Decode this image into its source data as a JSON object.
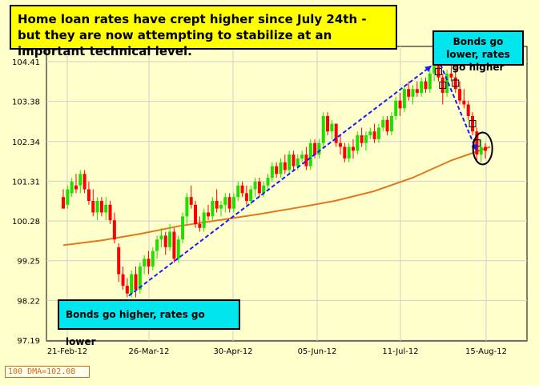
{
  "headline": "Home loan rates have crept higher since July 24th - but they are now attempting to stabilize at an important technical level.",
  "annotations": {
    "right": "Bonds go lower, rates go higher",
    "left": "Bonds go higher, rates go lower"
  },
  "legend": {
    "dma_label": "100 DMA=102.08"
  },
  "colors": {
    "background": "#ffffcc",
    "up_candle": "#22dd00",
    "down_candle": "#ff0000",
    "dma_line": "#e0781e",
    "arrow": "#1a1aff",
    "headline_box": "#ffff00",
    "callout_box": "#00e5ee"
  },
  "chart_data": {
    "type": "candlestick",
    "title": "",
    "xlabel": "",
    "ylabel": "",
    "ylim": [
      97.19,
      104.8
    ],
    "yticks": [
      97.19,
      98.22,
      99.25,
      100.28,
      101.31,
      102.34,
      103.38,
      104.41
    ],
    "ytick_labels": [
      "97.19",
      "98.22",
      "99.25",
      "100.28",
      "101.31",
      "102.34",
      "103.38",
      "104.41"
    ],
    "xtick_labels": [
      "21-Feb-12",
      "26-Mar-12",
      "30-Apr-12",
      "05-Jun-12",
      "11-Jul-12",
      "15-Aug-12"
    ],
    "grid": true,
    "candles": [
      {
        "open": 100.9,
        "high": 101.1,
        "low": 100.6,
        "close": 100.6
      },
      {
        "open": 100.7,
        "high": 101.2,
        "low": 100.6,
        "close": 101.1
      },
      {
        "open": 101.0,
        "high": 101.4,
        "low": 100.9,
        "close": 101.3
      },
      {
        "open": 101.2,
        "high": 101.5,
        "low": 101.0,
        "close": 101.1
      },
      {
        "open": 101.2,
        "high": 101.6,
        "low": 101.0,
        "close": 101.5
      },
      {
        "open": 101.5,
        "high": 101.6,
        "low": 101.0,
        "close": 101.1
      },
      {
        "open": 101.1,
        "high": 101.3,
        "low": 100.7,
        "close": 100.8
      },
      {
        "open": 100.8,
        "high": 101.1,
        "low": 100.4,
        "close": 100.5
      },
      {
        "open": 100.5,
        "high": 100.9,
        "low": 100.3,
        "close": 100.8
      },
      {
        "open": 100.8,
        "high": 100.9,
        "low": 100.4,
        "close": 100.5
      },
      {
        "open": 100.5,
        "high": 100.9,
        "low": 100.3,
        "close": 100.7
      },
      {
        "open": 100.7,
        "high": 100.8,
        "low": 100.2,
        "close": 100.3
      },
      {
        "open": 100.3,
        "high": 100.5,
        "low": 99.7,
        "close": 99.8
      },
      {
        "open": 99.6,
        "high": 99.7,
        "low": 98.7,
        "close": 98.9
      },
      {
        "open": 98.9,
        "high": 99.1,
        "low": 98.5,
        "close": 98.6
      },
      {
        "open": 98.6,
        "high": 98.8,
        "low": 98.3,
        "close": 98.4
      },
      {
        "open": 98.4,
        "high": 99.0,
        "low": 98.3,
        "close": 98.9
      },
      {
        "open": 98.9,
        "high": 99.1,
        "low": 98.3,
        "close": 98.5
      },
      {
        "open": 98.5,
        "high": 99.2,
        "low": 98.4,
        "close": 99.1
      },
      {
        "open": 99.1,
        "high": 99.4,
        "low": 98.9,
        "close": 99.3
      },
      {
        "open": 99.3,
        "high": 99.5,
        "low": 98.9,
        "close": 99.1
      },
      {
        "open": 99.1,
        "high": 99.6,
        "low": 99.0,
        "close": 99.5
      },
      {
        "open": 99.5,
        "high": 99.9,
        "low": 99.3,
        "close": 99.8
      },
      {
        "open": 99.8,
        "high": 100.1,
        "low": 99.6,
        "close": 99.9
      },
      {
        "open": 99.9,
        "high": 100.0,
        "low": 99.4,
        "close": 99.6
      },
      {
        "open": 99.6,
        "high": 100.2,
        "low": 99.5,
        "close": 100.0
      },
      {
        "open": 100.0,
        "high": 100.1,
        "low": 99.2,
        "close": 99.3
      },
      {
        "open": 99.3,
        "high": 99.9,
        "low": 99.2,
        "close": 99.8
      },
      {
        "open": 99.8,
        "high": 100.5,
        "low": 99.7,
        "close": 100.4
      },
      {
        "open": 100.4,
        "high": 101.0,
        "low": 100.2,
        "close": 100.9
      },
      {
        "open": 100.9,
        "high": 101.2,
        "low": 100.6,
        "close": 100.7
      },
      {
        "open": 100.7,
        "high": 100.8,
        "low": 100.1,
        "close": 100.2
      },
      {
        "open": 100.2,
        "high": 100.4,
        "low": 100.0,
        "close": 100.1
      },
      {
        "open": 100.1,
        "high": 100.6,
        "low": 100.0,
        "close": 100.5
      },
      {
        "open": 100.5,
        "high": 100.7,
        "low": 100.3,
        "close": 100.4
      },
      {
        "open": 100.4,
        "high": 100.9,
        "low": 100.3,
        "close": 100.8
      },
      {
        "open": 100.8,
        "high": 101.1,
        "low": 100.5,
        "close": 100.6
      },
      {
        "open": 100.6,
        "high": 100.8,
        "low": 100.4,
        "close": 100.7
      },
      {
        "open": 100.7,
        "high": 101.0,
        "low": 100.5,
        "close": 100.9
      },
      {
        "open": 100.9,
        "high": 101.0,
        "low": 100.5,
        "close": 100.6
      },
      {
        "open": 100.6,
        "high": 101.0,
        "low": 100.5,
        "close": 100.9
      },
      {
        "open": 100.9,
        "high": 101.3,
        "low": 100.8,
        "close": 101.2
      },
      {
        "open": 101.2,
        "high": 101.3,
        "low": 100.9,
        "close": 101.0
      },
      {
        "open": 101.0,
        "high": 101.2,
        "low": 100.7,
        "close": 100.8
      },
      {
        "open": 100.8,
        "high": 101.2,
        "low": 100.7,
        "close": 101.1
      },
      {
        "open": 101.1,
        "high": 101.4,
        "low": 100.9,
        "close": 101.3
      },
      {
        "open": 101.3,
        "high": 101.4,
        "low": 100.9,
        "close": 101.0
      },
      {
        "open": 101.0,
        "high": 101.3,
        "low": 100.9,
        "close": 101.2
      },
      {
        "open": 101.2,
        "high": 101.5,
        "low": 101.1,
        "close": 101.4
      },
      {
        "open": 101.4,
        "high": 101.8,
        "low": 101.3,
        "close": 101.7
      },
      {
        "open": 101.7,
        "high": 101.8,
        "low": 101.4,
        "close": 101.5
      },
      {
        "open": 101.5,
        "high": 101.9,
        "low": 101.4,
        "close": 101.8
      },
      {
        "open": 101.8,
        "high": 102.0,
        "low": 101.5,
        "close": 101.6
      },
      {
        "open": 101.6,
        "high": 102.1,
        "low": 101.5,
        "close": 102.0
      },
      {
        "open": 102.0,
        "high": 102.1,
        "low": 101.6,
        "close": 101.7
      },
      {
        "open": 101.7,
        "high": 102.0,
        "low": 101.6,
        "close": 101.9
      },
      {
        "open": 101.9,
        "high": 102.1,
        "low": 101.8,
        "close": 102.0
      },
      {
        "open": 102.0,
        "high": 102.2,
        "low": 101.6,
        "close": 101.7
      },
      {
        "open": 101.7,
        "high": 102.4,
        "low": 101.6,
        "close": 102.3
      },
      {
        "open": 102.3,
        "high": 102.4,
        "low": 101.9,
        "close": 102.0
      },
      {
        "open": 102.0,
        "high": 102.4,
        "low": 101.9,
        "close": 102.3
      },
      {
        "open": 102.3,
        "high": 103.1,
        "low": 102.2,
        "close": 103.0
      },
      {
        "open": 103.0,
        "high": 103.1,
        "low": 102.5,
        "close": 102.6
      },
      {
        "open": 102.6,
        "high": 102.9,
        "low": 102.4,
        "close": 102.8
      },
      {
        "open": 102.8,
        "high": 102.8,
        "low": 102.2,
        "close": 102.3
      },
      {
        "open": 102.3,
        "high": 102.5,
        "low": 102.0,
        "close": 102.2
      },
      {
        "open": 102.2,
        "high": 102.3,
        "low": 101.8,
        "close": 101.9
      },
      {
        "open": 101.9,
        "high": 102.3,
        "low": 101.8,
        "close": 102.2
      },
      {
        "open": 102.2,
        "high": 102.4,
        "low": 101.9,
        "close": 102.1
      },
      {
        "open": 102.1,
        "high": 102.6,
        "low": 102.0,
        "close": 102.5
      },
      {
        "open": 102.5,
        "high": 102.7,
        "low": 102.2,
        "close": 102.3
      },
      {
        "open": 102.3,
        "high": 102.6,
        "low": 102.1,
        "close": 102.5
      },
      {
        "open": 102.5,
        "high": 102.7,
        "low": 102.4,
        "close": 102.6
      },
      {
        "open": 102.6,
        "high": 102.8,
        "low": 102.3,
        "close": 102.4
      },
      {
        "open": 102.4,
        "high": 102.8,
        "low": 102.3,
        "close": 102.7
      },
      {
        "open": 102.7,
        "high": 103.0,
        "low": 102.6,
        "close": 102.9
      },
      {
        "open": 102.9,
        "high": 103.0,
        "low": 102.5,
        "close": 102.6
      },
      {
        "open": 102.6,
        "high": 103.1,
        "low": 102.5,
        "close": 103.0
      },
      {
        "open": 103.0,
        "high": 103.5,
        "low": 102.9,
        "close": 103.4
      },
      {
        "open": 103.4,
        "high": 103.6,
        "low": 103.0,
        "close": 103.2
      },
      {
        "open": 103.2,
        "high": 103.8,
        "low": 103.1,
        "close": 103.7
      },
      {
        "open": 103.7,
        "high": 103.9,
        "low": 103.4,
        "close": 103.5
      },
      {
        "open": 103.5,
        "high": 103.8,
        "low": 103.3,
        "close": 103.7
      },
      {
        "open": 103.7,
        "high": 103.9,
        "low": 103.5,
        "close": 103.6
      },
      {
        "open": 103.6,
        "high": 104.0,
        "low": 103.5,
        "close": 103.9
      },
      {
        "open": 103.9,
        "high": 104.0,
        "low": 103.6,
        "close": 103.7
      },
      {
        "open": 103.7,
        "high": 104.2,
        "low": 103.6,
        "close": 104.1
      },
      {
        "open": 104.1,
        "high": 104.5,
        "low": 103.9,
        "close": 104.3
      },
      {
        "open": 104.3,
        "high": 104.4,
        "low": 103.9,
        "close": 104.0
      },
      {
        "open": 104.0,
        "high": 104.1,
        "low": 103.3,
        "close": 103.6
      },
      {
        "open": 103.6,
        "high": 104.2,
        "low": 103.5,
        "close": 104.1
      },
      {
        "open": 104.1,
        "high": 104.3,
        "low": 103.9,
        "close": 104.0
      },
      {
        "open": 104.0,
        "high": 104.3,
        "low": 103.6,
        "close": 103.7
      },
      {
        "open": 103.7,
        "high": 103.9,
        "low": 103.3,
        "close": 103.4
      },
      {
        "open": 103.4,
        "high": 103.7,
        "low": 103.2,
        "close": 103.3
      },
      {
        "open": 103.3,
        "high": 103.4,
        "low": 102.9,
        "close": 103.0
      },
      {
        "open": 103.0,
        "high": 103.1,
        "low": 102.5,
        "close": 102.6
      },
      {
        "open": 102.6,
        "high": 102.7,
        "low": 101.8,
        "close": 102.0
      },
      {
        "open": 102.0,
        "high": 102.4,
        "low": 101.8,
        "close": 102.2
      },
      {
        "open": 102.2,
        "high": 102.3,
        "low": 101.9,
        "close": 102.1
      }
    ],
    "boxed_candle_indices": [
      88,
      89,
      92,
      96,
      97
    ],
    "dma_100": [
      99.65,
      99.78,
      99.95,
      100.15,
      100.3,
      100.45,
      100.62,
      100.8,
      101.05,
      101.4,
      101.85,
      102.2
    ],
    "annotations": [
      "Bonds go lower, rates go higher",
      "Bonds go higher, rates go lower"
    ]
  }
}
